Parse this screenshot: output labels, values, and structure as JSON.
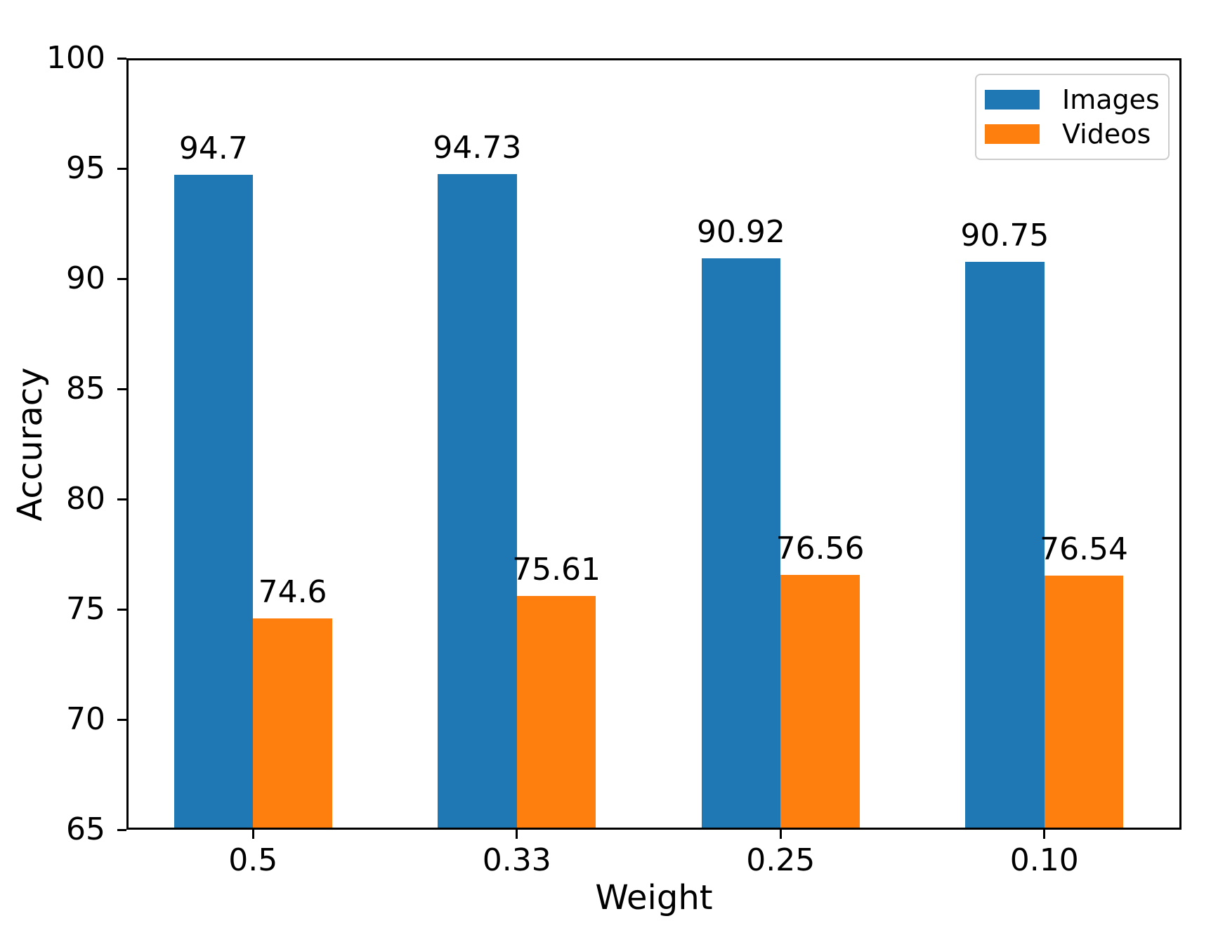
{
  "chart_data": {
    "type": "bar",
    "title": "",
    "xlabel": "Weight",
    "ylabel": "Accuracy",
    "categories": [
      "0.5",
      "0.33",
      "0.25",
      "0.10"
    ],
    "series": [
      {
        "name": "Images",
        "color": "#1f77b4",
        "values": [
          94.7,
          94.73,
          90.92,
          90.75
        ],
        "value_labels": [
          "94.7",
          "94.73",
          "90.92",
          "90.75"
        ]
      },
      {
        "name": "Videos",
        "color": "#ff7f0e",
        "values": [
          74.6,
          75.61,
          76.56,
          76.54
        ],
        "value_labels": [
          "74.6",
          "75.61",
          "76.56",
          "76.54"
        ]
      }
    ],
    "ylim": [
      65,
      100
    ],
    "yticks": [
      65,
      70,
      75,
      80,
      85,
      90,
      95,
      100
    ],
    "xlim": [
      -0.48,
      3.52
    ],
    "x_positions": [
      0,
      1,
      2,
      3
    ],
    "bar_width": 0.3,
    "grid": false,
    "legend_position": "upper right"
  }
}
